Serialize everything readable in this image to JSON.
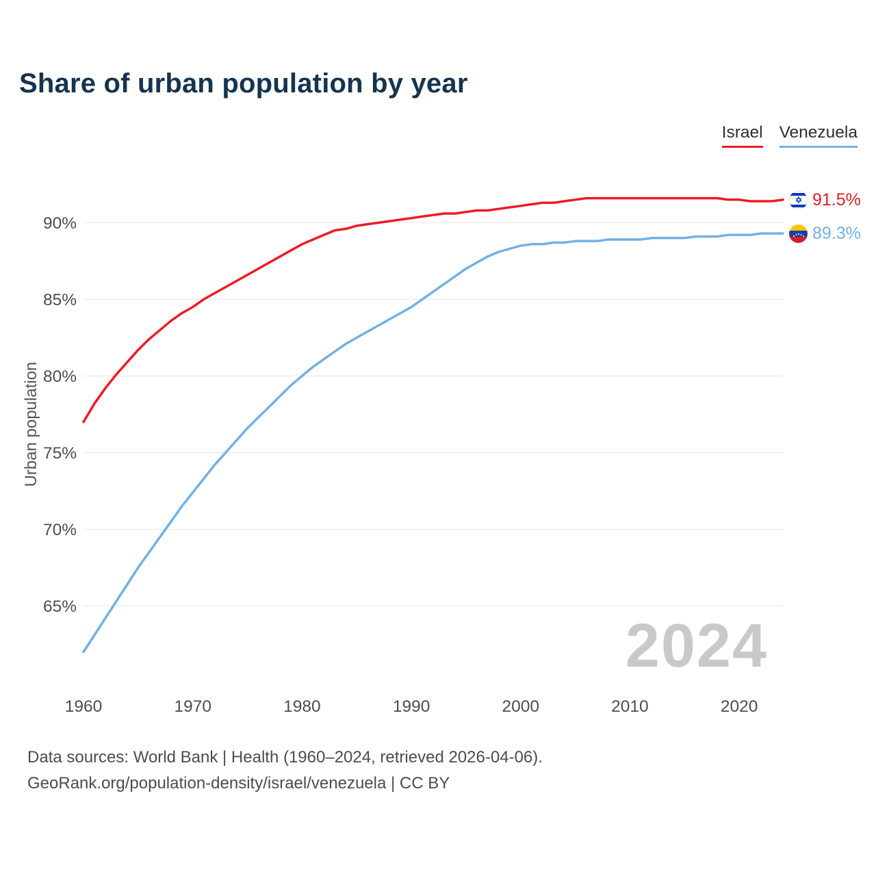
{
  "title": "Share of urban population by year",
  "legend": {
    "items": [
      {
        "label": "Israel",
        "color": "#ed1b24"
      },
      {
        "label": "Venezuela",
        "color": "#72b0e6"
      }
    ]
  },
  "y_axis_label": "Urban population",
  "watermark": "2024",
  "footer": {
    "line1": "Data sources: World Bank | Health (1960–2024, retrieved 2026-04-06).",
    "line2": "GeoRank.org/population-density/israel/venezuela | CC BY"
  },
  "chart_data": {
    "type": "line",
    "title": "Share of urban population by year",
    "xlabel": "",
    "ylabel": "Urban population",
    "xlim": [
      1960,
      2024
    ],
    "ylim": [
      61,
      93.5
    ],
    "x_ticks": [
      1960,
      1970,
      1980,
      1990,
      2000,
      2010,
      2020
    ],
    "y_ticks": [
      65,
      70,
      75,
      80,
      85,
      90
    ],
    "y_tick_suffix": "%",
    "grid": "horizontal",
    "legend_position": "top-right",
    "x": [
      1960,
      1961,
      1962,
      1963,
      1964,
      1965,
      1966,
      1967,
      1968,
      1969,
      1970,
      1971,
      1972,
      1973,
      1974,
      1975,
      1976,
      1977,
      1978,
      1979,
      1980,
      1981,
      1982,
      1983,
      1984,
      1985,
      1986,
      1987,
      1988,
      1989,
      1990,
      1991,
      1992,
      1993,
      1994,
      1995,
      1996,
      1997,
      1998,
      1999,
      2000,
      2001,
      2002,
      2003,
      2004,
      2005,
      2006,
      2007,
      2008,
      2009,
      2010,
      2011,
      2012,
      2013,
      2014,
      2015,
      2016,
      2017,
      2018,
      2019,
      2020,
      2021,
      2022,
      2023,
      2024
    ],
    "series": [
      {
        "name": "Israel",
        "color": "#ed1b24",
        "end_label": "91.5%",
        "flag_icon": "israel-flag-icon",
        "values": [
          77.0,
          78.2,
          79.2,
          80.1,
          80.9,
          81.7,
          82.4,
          83.0,
          83.6,
          84.1,
          84.5,
          85.0,
          85.4,
          85.8,
          86.2,
          86.6,
          87.0,
          87.4,
          87.8,
          88.2,
          88.6,
          88.9,
          89.2,
          89.5,
          89.6,
          89.8,
          89.9,
          90.0,
          90.1,
          90.2,
          90.3,
          90.4,
          90.5,
          90.6,
          90.6,
          90.7,
          90.8,
          90.8,
          90.9,
          91.0,
          91.1,
          91.2,
          91.3,
          91.3,
          91.4,
          91.5,
          91.6,
          91.6,
          91.6,
          91.6,
          91.6,
          91.6,
          91.6,
          91.6,
          91.6,
          91.6,
          91.6,
          91.6,
          91.6,
          91.5,
          91.5,
          91.4,
          91.4,
          91.4,
          91.5
        ]
      },
      {
        "name": "Venezuela",
        "color": "#72b0e6",
        "end_label": "89.3%",
        "flag_icon": "venezuela-flag-icon",
        "values": [
          62.0,
          63.1,
          64.2,
          65.3,
          66.4,
          67.5,
          68.5,
          69.5,
          70.5,
          71.5,
          72.4,
          73.3,
          74.2,
          75.0,
          75.8,
          76.6,
          77.3,
          78.0,
          78.7,
          79.4,
          80.0,
          80.6,
          81.1,
          81.6,
          82.1,
          82.5,
          82.9,
          83.3,
          83.7,
          84.1,
          84.5,
          85.0,
          85.5,
          86.0,
          86.5,
          87.0,
          87.4,
          87.8,
          88.1,
          88.3,
          88.5,
          88.6,
          88.6,
          88.7,
          88.7,
          88.8,
          88.8,
          88.8,
          88.9,
          88.9,
          88.9,
          88.9,
          89.0,
          89.0,
          89.0,
          89.0,
          89.1,
          89.1,
          89.1,
          89.2,
          89.2,
          89.2,
          89.3,
          89.3,
          89.3
        ]
      }
    ]
  }
}
